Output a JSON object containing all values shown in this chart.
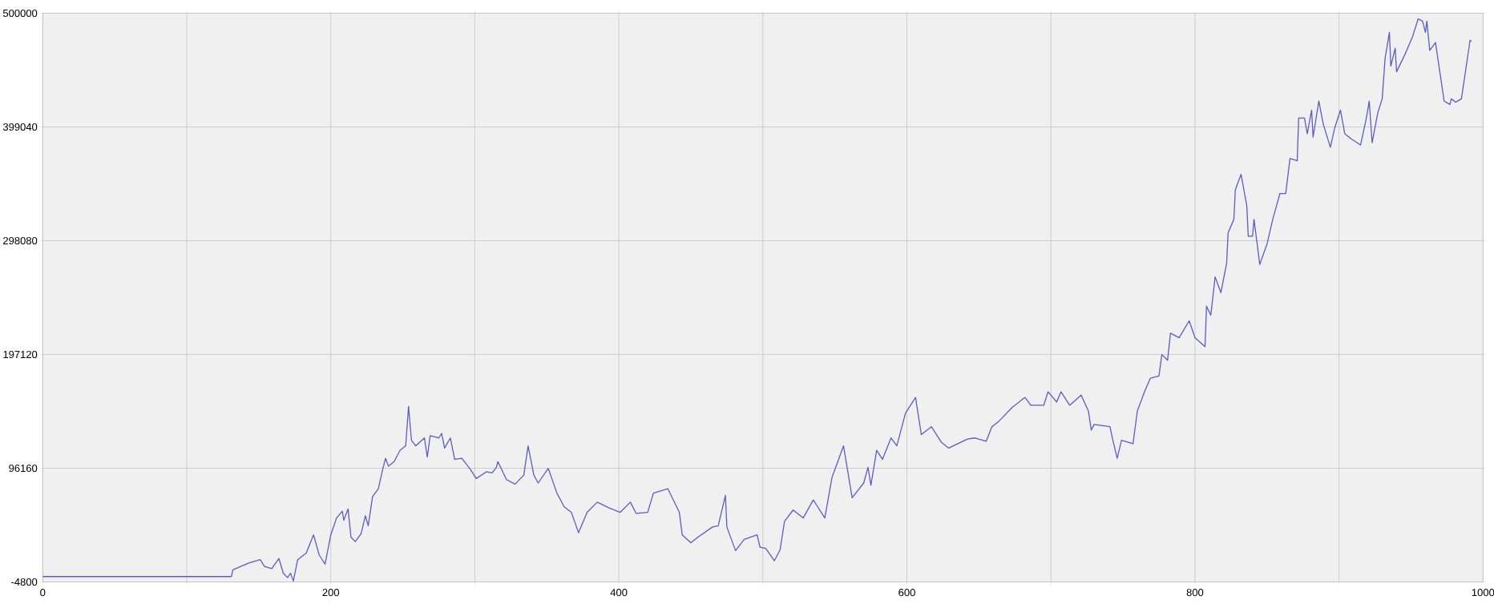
{
  "chart_data": {
    "type": "line",
    "xlim": [
      0,
      1000
    ],
    "ylim": [
      -4800,
      500000
    ],
    "xticks": [
      0,
      {
        "value": 100,
        "label": null
      },
      200,
      {
        "value": 300,
        "label": null
      },
      400,
      {
        "value": 500,
        "label": null
      },
      600,
      {
        "value": 700,
        "label": null
      },
      800,
      {
        "value": 900,
        "label": null
      },
      1000
    ],
    "yticks": [
      -4800,
      96160,
      197120,
      298080,
      399040,
      500000
    ],
    "grid": true,
    "marker": "none",
    "line_style": "solid",
    "series": [
      {
        "color": "#5b5bc8",
        "x": [
          0,
          131,
          132,
          143,
          151,
          154,
          159,
          164,
          167,
          170,
          172,
          174,
          177,
          183,
          188,
          192,
          196,
          200,
          204,
          208,
          209,
          212,
          214,
          217,
          221,
          224,
          226,
          229,
          233,
          236,
          238,
          240,
          244,
          248,
          252,
          254,
          256,
          259,
          265,
          267,
          269,
          275,
          277,
          279,
          283,
          286,
          291,
          297,
          301,
          308,
          312,
          315,
          316,
          322,
          328,
          334,
          337,
          341,
          344,
          351,
          357,
          362,
          367,
          372,
          378,
          385,
          393,
          401,
          408,
          412,
          420,
          424,
          434,
          442,
          444,
          450,
          455,
          465,
          469,
          474,
          475,
          481,
          487,
          496,
          498,
          502,
          508,
          512,
          515,
          521,
          528,
          535,
          543,
          548,
          556,
          562,
          570,
          573,
          575,
          579,
          583,
          589,
          593,
          599,
          606,
          610,
          617,
          624,
          629,
          642,
          647,
          655,
          659,
          664,
          673,
          682,
          686,
          695,
          698,
          704,
          707,
          713,
          721,
          726,
          728,
          730,
          741,
          743,
          746,
          749,
          757,
          760,
          765,
          769,
          775,
          777,
          781,
          783,
          789,
          796,
          800,
          807,
          808,
          811,
          814,
          818,
          822,
          823,
          827,
          828,
          832,
          836,
          837,
          840,
          841,
          845,
          850,
          854,
          859,
          863,
          866,
          871,
          872,
          876,
          878,
          881,
          882,
          886,
          889,
          894,
          897,
          901,
          904,
          909,
          915,
          919,
          921,
          923,
          927,
          930,
          932,
          935,
          936,
          939,
          940,
          946,
          951,
          955,
          958,
          960,
          961,
          963,
          967,
          973,
          977,
          978,
          981,
          985,
          991,
          992
        ],
        "values": [
          0,
          0,
          6000,
          12000,
          15000,
          9000,
          7000,
          16000,
          3000,
          -1000,
          3000,
          -4000,
          15000,
          21000,
          37000,
          19000,
          11000,
          37000,
          52000,
          58000,
          50000,
          60000,
          35000,
          31000,
          38000,
          54000,
          45000,
          71000,
          78000,
          95000,
          105000,
          98000,
          102000,
          112000,
          116000,
          151000,
          121000,
          116000,
          123000,
          106000,
          125000,
          123000,
          127000,
          114000,
          123000,
          104000,
          105000,
          95000,
          87000,
          93000,
          92000,
          97000,
          102000,
          86000,
          82000,
          90000,
          116000,
          90000,
          83000,
          96000,
          74000,
          62000,
          57000,
          39000,
          57000,
          66000,
          61000,
          57000,
          66000,
          56000,
          57000,
          74000,
          78000,
          57000,
          37000,
          30000,
          35000,
          44000,
          45000,
          72000,
          44000,
          23000,
          33000,
          37000,
          26000,
          25000,
          14000,
          24000,
          49000,
          59000,
          52000,
          68000,
          52000,
          88000,
          116000,
          70000,
          83000,
          97000,
          81000,
          112000,
          104000,
          123000,
          116000,
          145000,
          159000,
          126000,
          133000,
          119000,
          114000,
          122000,
          123000,
          120000,
          133000,
          138000,
          150000,
          159000,
          152000,
          152000,
          164000,
          155000,
          164000,
          152000,
          161000,
          147000,
          130000,
          135000,
          133000,
          121000,
          105000,
          121000,
          118000,
          147000,
          164000,
          176000,
          178000,
          197000,
          192000,
          216000,
          212000,
          227000,
          212000,
          204000,
          240000,
          232000,
          266000,
          252000,
          278000,
          305000,
          317000,
          343000,
          357000,
          329000,
          302000,
          302000,
          317000,
          277000,
          295000,
          317000,
          340000,
          340000,
          371000,
          369000,
          407000,
          407000,
          393000,
          414000,
          390000,
          422000,
          402000,
          381000,
          398000,
          414000,
          393000,
          388000,
          383000,
          407000,
          422000,
          385000,
          412000,
          424000,
          460000,
          483000,
          453000,
          469000,
          448000,
          464000,
          479000,
          495000,
          493000,
          483000,
          493000,
          467000,
          474000,
          422000,
          419000,
          424000,
          421000,
          424000,
          476000,
          475000
        ]
      }
    ]
  }
}
